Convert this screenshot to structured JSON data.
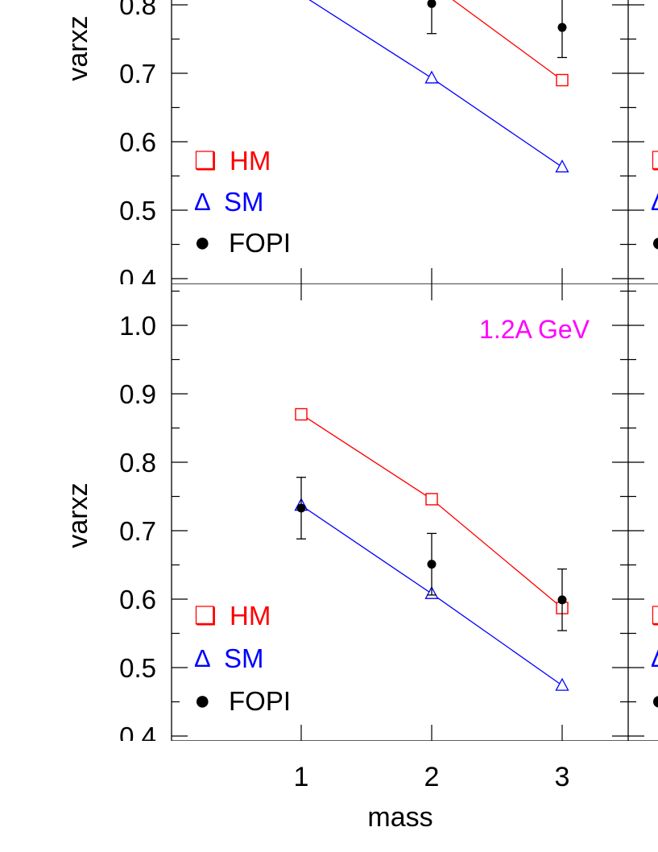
{
  "chart_data": [
    {
      "type": "scatter",
      "panel": "top",
      "title": "",
      "xlabel": "",
      "ylabel": "varxz",
      "x": [
        1,
        2,
        3
      ],
      "xlim": [
        0.1,
        3.5
      ],
      "ylim": [
        0.385,
        1.14
      ],
      "yticks": [
        "0.4",
        "0.5",
        "0.6",
        "0.7",
        "0.8"
      ],
      "legend_position": "bottom-left",
      "series": [
        {
          "name": "HM",
          "key": "hm",
          "color": "#ff0000",
          "marker": "square",
          "values": [
            null,
            0.83,
            0.69
          ],
          "line": true
        },
        {
          "name": "SM",
          "key": "sm",
          "color": "#0000ff",
          "marker": "triangle",
          "values": [
            0.815,
            0.693,
            0.563
          ],
          "line": true
        },
        {
          "name": "FOPI",
          "key": "fopi",
          "color": "#000000",
          "marker": "circle",
          "values": [
            null,
            0.802,
            0.767
          ],
          "errors": [
            null,
            0.044,
            0.044
          ],
          "line": false
        }
      ]
    },
    {
      "type": "scatter",
      "panel": "bottom",
      "title": "",
      "annotation": "1.2A GeV",
      "annotation_color": "#ff00ff",
      "xlabel": "mass",
      "ylabel": "varxz",
      "x": [
        1,
        2,
        3
      ],
      "xticks": [
        "1",
        "2",
        "3"
      ],
      "xlim": [
        0.1,
        3.5
      ],
      "ylim": [
        0.385,
        1.14
      ],
      "yticks": [
        "0.4",
        "0.5",
        "0.6",
        "0.7",
        "0.8",
        "0.9",
        "1.0"
      ],
      "legend_position": "bottom-left",
      "series": [
        {
          "name": "HM",
          "key": "hm",
          "color": "#ff0000",
          "marker": "square",
          "values": [
            0.87,
            0.746,
            0.587
          ],
          "line": true
        },
        {
          "name": "SM",
          "key": "sm",
          "color": "#0000ff",
          "marker": "triangle",
          "values": [
            0.737,
            0.608,
            0.474
          ],
          "line": true
        },
        {
          "name": "FOPI",
          "key": "fopi",
          "color": "#000000",
          "marker": "circle",
          "values": [
            0.733,
            0.651,
            0.599
          ],
          "errors": [
            0.045,
            0.045,
            0.045
          ],
          "line": false
        }
      ]
    }
  ],
  "legend": [
    {
      "key": "hm",
      "symbol": "❑",
      "label": "HM",
      "color": "#ff0000"
    },
    {
      "key": "sm",
      "symbol": "Δ",
      "label": "SM",
      "color": "#0000ff"
    },
    {
      "key": "fopi",
      "symbol": "●",
      "label": "FOPI",
      "color": "#000000"
    }
  ]
}
